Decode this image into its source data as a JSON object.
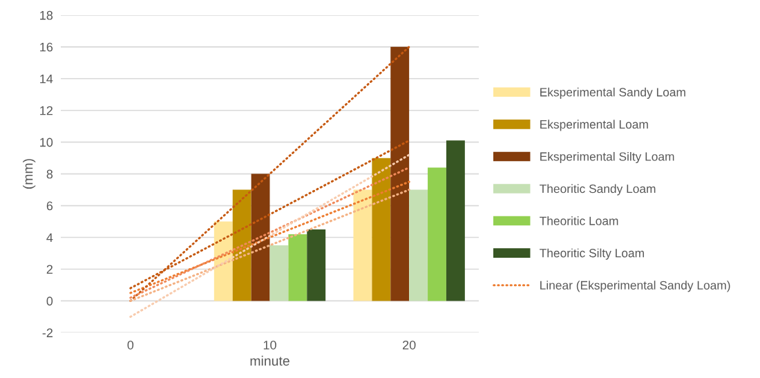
{
  "chart_data": {
    "type": "bar",
    "xlabel": "minute",
    "ylabel": "(mm)",
    "categories": [
      "0",
      "10",
      "20"
    ],
    "series": [
      {
        "name": "Eksperimental Sandy Loam",
        "color": "#ffe699",
        "values": [
          0,
          5,
          7
        ]
      },
      {
        "name": "Eksperimental Loam",
        "color": "#bf8f00",
        "values": [
          0,
          7,
          9
        ]
      },
      {
        "name": "Eksperimental Silty Loam",
        "color": "#843c0c",
        "values": [
          0,
          8,
          16
        ]
      },
      {
        "name": "Theoritic Sandy Loam",
        "color": "#c5e0b4",
        "values": [
          0,
          3.5,
          7
        ]
      },
      {
        "name": "Theoritic Loam",
        "color": "#92d050",
        "values": [
          0,
          4.2,
          8.4
        ]
      },
      {
        "name": "Theoritic Silty Loam",
        "color": "#375623",
        "values": [
          0,
          4.5,
          10.1
        ]
      },
      {
        "name": "Linear (Eksperimental Sandy Loam)",
        "type": "line",
        "line_style": "dotted",
        "color": "#ed7d31",
        "x": [
          "0",
          "20"
        ],
        "values": [
          0.5,
          7.5
        ]
      },
      {
        "type": "line",
        "line_style": "dotted",
        "color": "#c55a11",
        "x": [
          "0",
          "20"
        ],
        "values": [
          0.8,
          10.1
        ]
      },
      {
        "type": "line",
        "line_style": "dotted",
        "color": "#c65911",
        "x": [
          "0",
          "20"
        ],
        "values": [
          0,
          16
        ]
      },
      {
        "type": "line",
        "line_style": "dotted",
        "color": "#f4b183",
        "x": [
          "0",
          "20"
        ],
        "values": [
          0,
          7
        ]
      },
      {
        "type": "line",
        "line_style": "dotted",
        "color": "#f08a5a",
        "x": [
          "0",
          "20"
        ],
        "values": [
          0.2,
          8.4
        ]
      },
      {
        "type": "line",
        "line_style": "dotted",
        "color": "#f8cbad",
        "x": [
          "0",
          "20"
        ],
        "values": [
          -1,
          9.2
        ]
      }
    ],
    "ylim": [
      -2,
      18
    ],
    "yticks": [
      -2,
      0,
      2,
      4,
      6,
      8,
      10,
      12,
      14,
      16,
      18
    ],
    "grid": "y",
    "legend": "right"
  }
}
